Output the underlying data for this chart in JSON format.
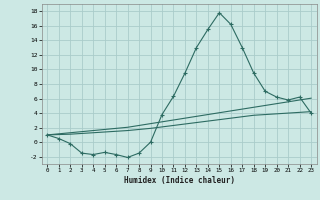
{
  "xlabel": "Humidex (Indice chaleur)",
  "bg_color": "#cce8e4",
  "grid_color": "#aaccca",
  "line_color": "#2d6b62",
  "x_values": [
    0,
    1,
    2,
    3,
    4,
    5,
    6,
    7,
    8,
    9,
    10,
    11,
    12,
    13,
    14,
    15,
    16,
    17,
    18,
    19,
    20,
    21,
    22,
    23
  ],
  "main_y": [
    1.0,
    0.5,
    -0.2,
    -1.5,
    -1.7,
    -1.4,
    -1.7,
    -2.1,
    -1.5,
    0.0,
    3.8,
    6.3,
    9.5,
    13.0,
    15.5,
    17.8,
    16.2,
    13.0,
    9.5,
    7.0,
    6.2,
    5.8,
    6.2,
    4.0
  ],
  "line2_y": [
    1.0,
    1.15,
    1.3,
    1.45,
    1.6,
    1.75,
    1.9,
    2.05,
    2.3,
    2.55,
    2.8,
    3.05,
    3.3,
    3.55,
    3.8,
    4.05,
    4.3,
    4.55,
    4.8,
    5.05,
    5.3,
    5.55,
    5.8,
    6.05
  ],
  "line3_y": [
    1.0,
    1.05,
    1.1,
    1.2,
    1.3,
    1.4,
    1.5,
    1.6,
    1.75,
    1.9,
    2.1,
    2.3,
    2.5,
    2.7,
    2.9,
    3.1,
    3.3,
    3.5,
    3.7,
    3.8,
    3.9,
    4.0,
    4.1,
    4.2
  ],
  "ylim": [
    -3,
    19
  ],
  "xlim": [
    -0.5,
    23.5
  ],
  "yticks": [
    -2,
    0,
    2,
    4,
    6,
    8,
    10,
    12,
    14,
    16,
    18
  ],
  "xticks": [
    0,
    1,
    2,
    3,
    4,
    5,
    6,
    7,
    8,
    9,
    10,
    11,
    12,
    13,
    14,
    15,
    16,
    17,
    18,
    19,
    20,
    21,
    22,
    23
  ]
}
